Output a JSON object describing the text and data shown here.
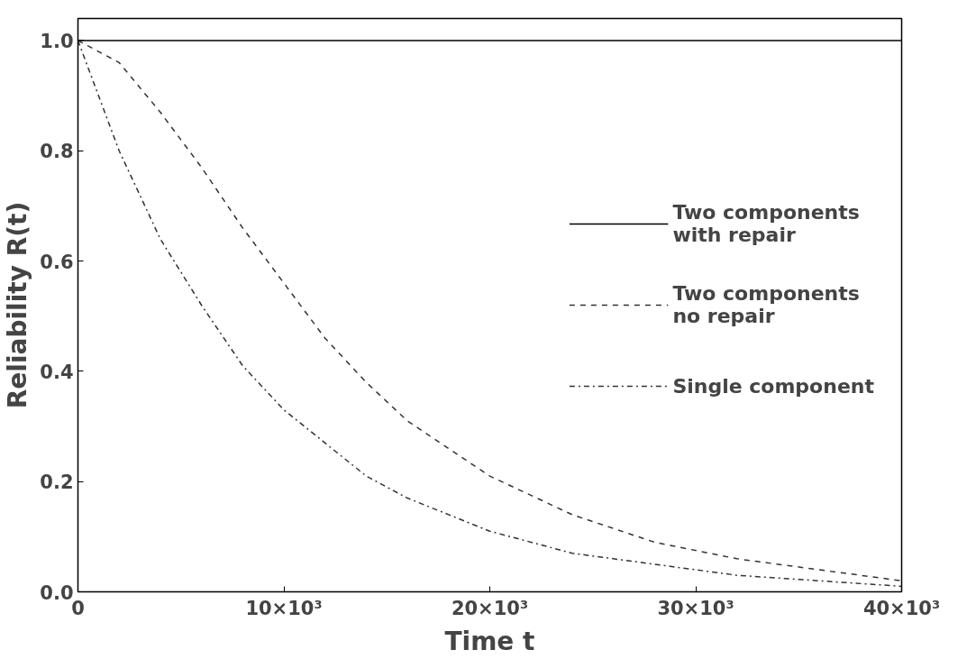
{
  "chart_data": {
    "type": "line",
    "xlabel": "Time t",
    "ylabel": "Reliability R(t)",
    "x": [
      0,
      2000,
      4000,
      6000,
      8000,
      10000,
      12000,
      14000,
      16000,
      18000,
      20000,
      24000,
      28000,
      32000,
      36000,
      40000
    ],
    "series": [
      {
        "name": "Two components\nwith repair",
        "color": "#000000",
        "line_style": "solid",
        "values": [
          1.0,
          1.0,
          1.0,
          1.0,
          1.0,
          1.0,
          1.0,
          1.0,
          1.0,
          1.0,
          1.0,
          1.0,
          1.0,
          1.0,
          1.0,
          1.0
        ]
      },
      {
        "name": "Two components\nno repair",
        "color": "#333333",
        "line_style": "dashed",
        "values": [
          1.0,
          0.96,
          0.87,
          0.77,
          0.66,
          0.56,
          0.46,
          0.38,
          0.31,
          0.26,
          0.21,
          0.14,
          0.09,
          0.06,
          0.04,
          0.02
        ]
      },
      {
        "name": "Single component",
        "color": "#333333",
        "line_style": "dashdot",
        "values": [
          1.0,
          0.8,
          0.64,
          0.52,
          0.41,
          0.33,
          0.27,
          0.21,
          0.17,
          0.14,
          0.11,
          0.07,
          0.05,
          0.03,
          0.02,
          0.01
        ]
      }
    ],
    "xlim": [
      0,
      40000
    ],
    "ylim": [
      0,
      1.04
    ],
    "xticks": [
      0,
      {
        "value": 10000,
        "label": "10×10³"
      },
      {
        "value": 20000,
        "label": "20×10³"
      },
      {
        "value": 30000,
        "label": "30×10³"
      },
      {
        "value": 40000,
        "label": "40×10³"
      }
    ],
    "yticks": [
      {
        "value": 0,
        "label": "0.0"
      },
      0.2,
      0.4,
      0.6,
      0.8,
      {
        "value": 1,
        "label": "1.0"
      }
    ],
    "grid": false,
    "legend": "right",
    "marker": "none"
  }
}
